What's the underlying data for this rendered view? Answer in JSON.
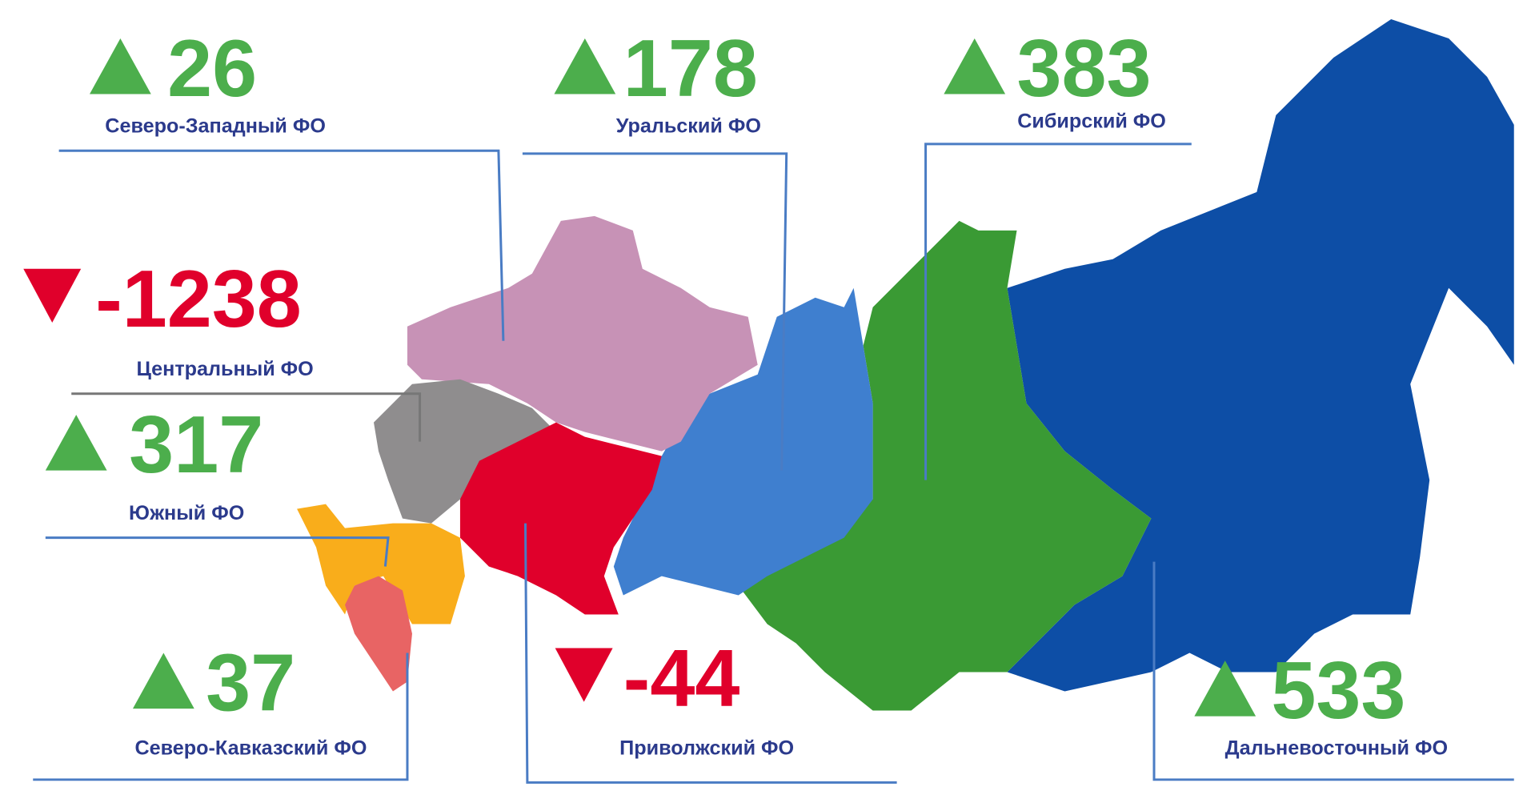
{
  "regions": [
    {
      "name": "Северо-Западный ФО",
      "value": 26
    },
    {
      "name": "Уральский ФО",
      "value": 178
    },
    {
      "name": "Сибирский ФО",
      "value": 383
    },
    {
      "name": "Центральный ФО",
      "value": -1238
    },
    {
      "name": "Южный ФО",
      "value": 317
    },
    {
      "name": "Северо-Кавказский ФО",
      "value": 37
    },
    {
      "name": "Приволжский ФО",
      "value": -44
    },
    {
      "name": "Дальневосточный ФО",
      "value": 533
    }
  ]
}
